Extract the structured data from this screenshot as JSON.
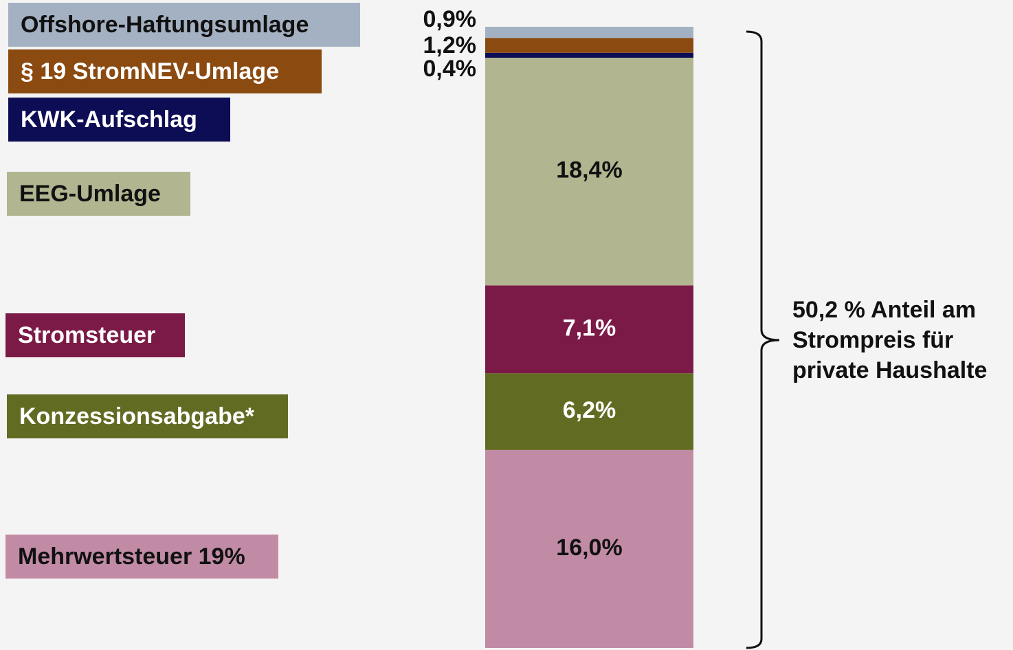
{
  "chart_data": {
    "type": "stacked-bar",
    "ylim": [
      0,
      50.2
    ],
    "series": [
      {
        "name": "Mehrwertsteuer 19%",
        "color": "#c18ba6",
        "values": [
          16.0
        ],
        "value_labels": [
          "16,0%"
        ]
      },
      {
        "name": "Konzessionsabgabe*",
        "color": "#626b22",
        "values": [
          6.2
        ],
        "value_labels": [
          "6,2%"
        ]
      },
      {
        "name": "Stromsteuer",
        "color": "#7c1a47",
        "values": [
          7.1
        ],
        "value_labels": [
          "7,1%"
        ]
      },
      {
        "name": "EEG-Umlage",
        "color": "#b1b590",
        "values": [
          18.4
        ],
        "value_labels": [
          "18,4%"
        ]
      },
      {
        "name": "KWK-Aufschlag",
        "color": "#0d0d55",
        "values": [
          0.4
        ],
        "value_labels": [
          "0,4%"
        ]
      },
      {
        "name": "§ 19 StromNEV-Umlage",
        "color": "#8b4a10",
        "values": [
          1.2
        ],
        "value_labels": [
          "1,2%"
        ]
      },
      {
        "name": "Offshore-Haftungsumlage",
        "color": "#a3b1c2",
        "values": [
          0.9
        ],
        "value_labels": [
          "0,9%"
        ]
      }
    ],
    "annotation": [
      "50,2 % Anteil am",
      "Strompreis für",
      "private Haushalte"
    ]
  }
}
